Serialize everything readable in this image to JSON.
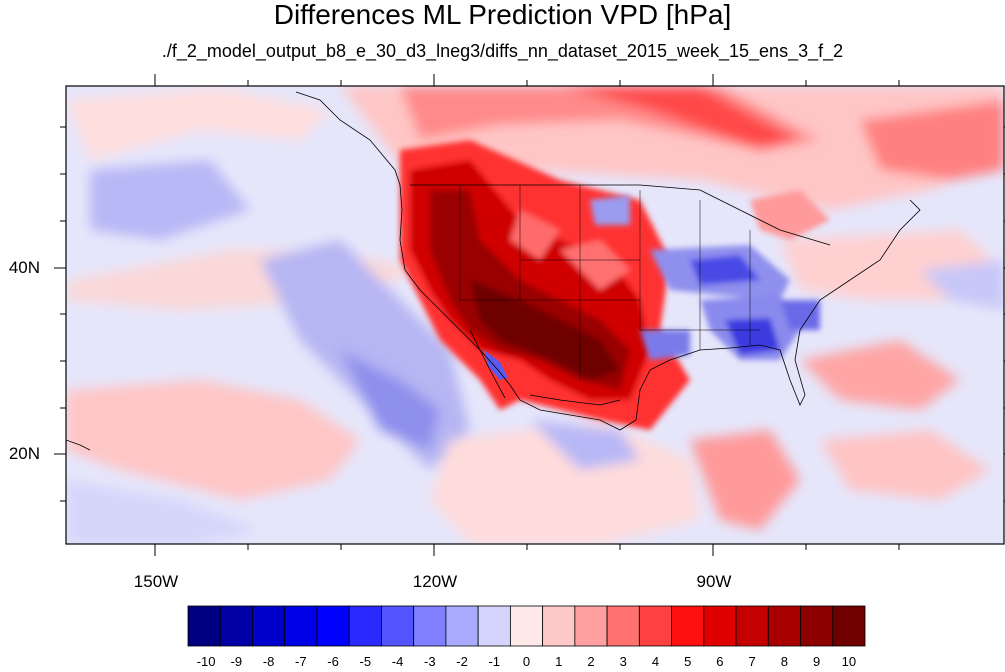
{
  "title": "Differences ML Prediction VPD [hPa]",
  "subtitle": "./f_2_model_output_b8_e_30_d3_lneg3/diffs_nn_dataset_2015_week_15_ens_3_f_2",
  "map": {
    "projection": "cylindrical equidistant",
    "lon_range": [
      -160,
      -62
    ],
    "lat_range": [
      11,
      60
    ],
    "lon_ticks": [
      "150W",
      "120W",
      "90W"
    ],
    "lat_ticks": [
      "40N",
      "20N"
    ]
  },
  "colorbar": {
    "labels": [
      "-10",
      "-9",
      "-8",
      "-7",
      "-6",
      "-5",
      "-4",
      "-3",
      "-2",
      "-1",
      "0",
      "1",
      "2",
      "3",
      "4",
      "5",
      "6",
      "7",
      "8",
      "9",
      "10"
    ],
    "colors": [
      "#000080",
      "#0000a6",
      "#0000cc",
      "#0000e6",
      "#0000ff",
      "#2a2aff",
      "#5555ff",
      "#7f7fff",
      "#aaaaff",
      "#d4d4ff",
      "#ffe8e8",
      "#ffc8c8",
      "#ff9f9f",
      "#ff7070",
      "#ff4040",
      "#ff1010",
      "#e00000",
      "#c40000",
      "#a80000",
      "#8c0000",
      "#700000"
    ]
  }
}
